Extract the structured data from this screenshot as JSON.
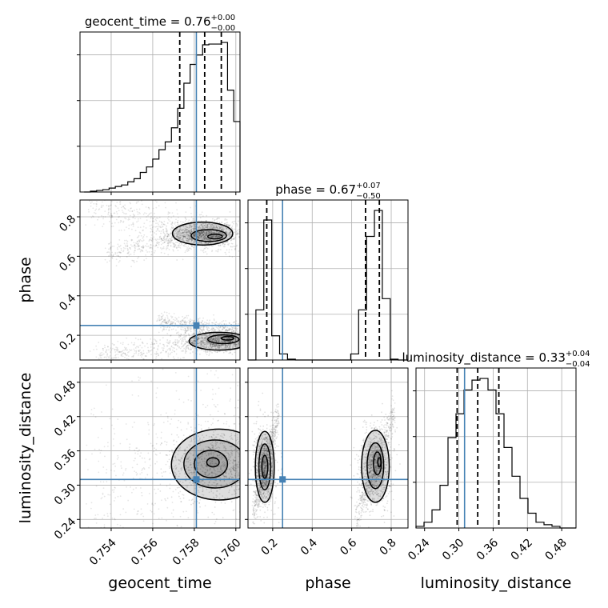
{
  "chart_data": {
    "type": "corner",
    "parameters": [
      {
        "name": "geocent_time",
        "label": "geocent_time",
        "range": [
          0.7525,
          0.7602
        ],
        "ticks": [
          0.754,
          0.756,
          0.758,
          0.76
        ],
        "tick_labels": [
          "0.754",
          "0.756",
          "0.758",
          "0.760"
        ],
        "truth": 0.7581,
        "quantiles": [
          0.7573,
          0.7585,
          0.7593
        ],
        "title": {
          "main": "geocent_time = 0.76",
          "upper": "+0.00",
          "lower": "−0.00"
        },
        "hist": {
          "edges": [
            0.7527,
            0.753,
            0.7533,
            0.7536,
            0.7539,
            0.7542,
            0.7545,
            0.7548,
            0.7551,
            0.7554,
            0.7557,
            0.756,
            0.7563,
            0.7566,
            0.7569,
            0.7572,
            0.7575,
            0.7578,
            0.7581,
            0.7584,
            0.7587,
            0.759,
            0.7593,
            0.7596,
            0.7599,
            0.7602
          ],
          "counts": [
            0,
            1,
            2,
            3,
            5,
            7,
            9,
            13,
            17,
            25,
            32,
            42,
            54,
            64,
            82,
            107,
            139,
            163,
            175,
            188,
            189,
            189,
            191,
            130,
            90
          ]
        }
      },
      {
        "name": "phase",
        "label": "phase",
        "range": [
          0.075,
          0.885
        ],
        "ticks": [
          0.2,
          0.4,
          0.6,
          0.8
        ],
        "tick_labels": [
          "0.2",
          "0.4",
          "0.6",
          "0.8"
        ],
        "truth": 0.25,
        "quantiles": [
          0.17,
          0.67,
          0.74
        ],
        "title": {
          "main": "phase = 0.67",
          "upper": "+0.07",
          "lower": "−0.50"
        },
        "hist": {
          "edges": [
            0.075,
            0.115,
            0.155,
            0.195,
            0.235,
            0.275,
            0.315,
            0.355,
            0.395,
            0.435,
            0.475,
            0.515,
            0.555,
            0.595,
            0.635,
            0.675,
            0.715,
            0.755,
            0.795,
            0.835,
            0.875
          ],
          "counts": [
            0,
            58,
            162,
            28,
            7,
            1,
            0,
            0,
            0,
            0,
            0,
            0,
            0,
            7,
            58,
            143,
            173,
            71,
            1,
            0
          ]
        }
      },
      {
        "name": "luminosity_distance",
        "label": "luminosity_distance",
        "range": [
          0.225,
          0.505
        ],
        "ticks": [
          0.24,
          0.3,
          0.36,
          0.42,
          0.48
        ],
        "tick_labels": [
          "0.24",
          "0.30",
          "0.36",
          "0.42",
          "0.48"
        ],
        "truth": 0.31,
        "quantiles": [
          0.297,
          0.333,
          0.37
        ],
        "title": {
          "main": "luminosity_distance = 0.33",
          "upper": "+0.04",
          "lower": "−0.04"
        },
        "hist": {
          "edges": [
            0.225,
            0.239,
            0.253,
            0.267,
            0.281,
            0.295,
            0.309,
            0.323,
            0.337,
            0.351,
            0.365,
            0.379,
            0.393,
            0.407,
            0.421,
            0.435,
            0.449,
            0.463,
            0.477,
            0.491,
            0.505
          ],
          "counts": [
            2,
            7,
            22,
            52,
            110,
            139,
            168,
            180,
            182,
            168,
            139,
            98,
            63,
            36,
            18,
            7,
            4,
            2,
            0,
            0
          ]
        }
      }
    ],
    "pairs": [
      {
        "x": "geocent_time",
        "y": "phase",
        "cloud": [
          {
            "x": [
              0.7529,
              0.7602
            ],
            "y": [
              0.86,
              0.68
            ],
            "width": 0.05
          },
          {
            "x": [
              0.7538,
              0.7598
            ],
            "y": [
              0.62,
              0.72
            ],
            "width": 0.03
          },
          {
            "x": [
              0.7532,
              0.7602
            ],
            "y": [
              0.09,
              0.19
            ],
            "width": 0.03
          },
          {
            "x": [
              0.7563,
              0.7602
            ],
            "y": [
              0.27,
              0.22
            ],
            "width": 0.025
          }
        ],
        "contours": [
          {
            "cx": 0.7584,
            "cy": 0.715,
            "rx": 0.00145,
            "ry": 0.058
          },
          {
            "cx": 0.7587,
            "cy": 0.705,
            "rx": 0.00085,
            "ry": 0.03
          },
          {
            "cx": 0.759,
            "cy": 0.7,
            "rx": 0.00035,
            "ry": 0.012
          },
          {
            "cx": 0.7592,
            "cy": 0.17,
            "rx": 0.00145,
            "ry": 0.045
          },
          {
            "cx": 0.7594,
            "cy": 0.18,
            "rx": 0.00075,
            "ry": 0.022
          },
          {
            "cx": 0.7596,
            "cy": 0.185,
            "rx": 0.0003,
            "ry": 0.009
          }
        ]
      },
      {
        "x": "geocent_time",
        "y": "luminosity_distance",
        "cloud": [
          {
            "x": [
              0.753,
              0.7602
            ],
            "y": [
              0.28,
              0.4
            ],
            "width": 0.08
          }
        ],
        "contours": [
          {
            "cx": 0.7592,
            "cy": 0.336,
            "rx": 0.0023,
            "ry": 0.062
          },
          {
            "cx": 0.759,
            "cy": 0.337,
            "rx": 0.0015,
            "ry": 0.042
          },
          {
            "cx": 0.7588,
            "cy": 0.337,
            "rx": 0.0008,
            "ry": 0.024
          },
          {
            "cx": 0.7589,
            "cy": 0.34,
            "rx": 0.0003,
            "ry": 0.008
          }
        ]
      },
      {
        "x": "phase",
        "y": "luminosity_distance",
        "cloud": [
          {
            "x": [
              0.1,
              0.23
            ],
            "y": [
              0.25,
              0.42
            ],
            "width": 0.0
          },
          {
            "x": [
              0.62,
              0.82
            ],
            "y": [
              0.24,
              0.43
            ],
            "width": 0.0
          }
        ],
        "contours": [
          {
            "cx": 0.16,
            "cy": 0.332,
            "rx": 0.048,
            "ry": 0.062
          },
          {
            "cx": 0.16,
            "cy": 0.332,
            "rx": 0.03,
            "ry": 0.04
          },
          {
            "cx": 0.16,
            "cy": 0.332,
            "rx": 0.015,
            "ry": 0.02
          },
          {
            "cx": 0.72,
            "cy": 0.333,
            "rx": 0.07,
            "ry": 0.063
          },
          {
            "cx": 0.72,
            "cy": 0.334,
            "rx": 0.042,
            "ry": 0.04
          },
          {
            "cx": 0.73,
            "cy": 0.338,
            "rx": 0.02,
            "ry": 0.02
          },
          {
            "cx": 0.74,
            "cy": 0.34,
            "rx": 0.008,
            "ry": 0.008
          }
        ]
      }
    ],
    "grid": true
  }
}
